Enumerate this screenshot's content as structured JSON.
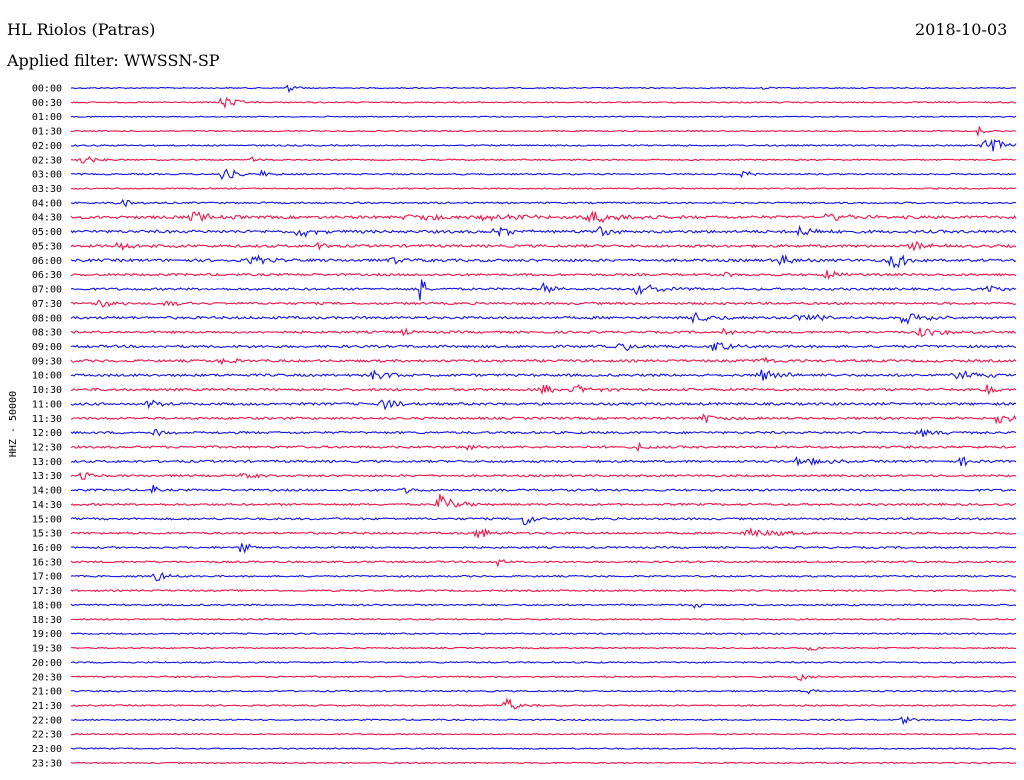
{
  "header": {
    "station": "HL Riolos (Patras)",
    "date": "2018-10-03",
    "filter": "Applied filter: WWSSN-SP"
  },
  "chart_data": {
    "type": "line",
    "title": "HL Riolos (Patras)",
    "subtitle": "Applied filter: WWSSN-SP",
    "date": "2018-10-03",
    "ylabel": "HHZ - 50000",
    "row_labels": [
      "00:00",
      "00:30",
      "01:00",
      "01:30",
      "02:00",
      "02:30",
      "03:00",
      "03:30",
      "04:00",
      "04:30",
      "05:00",
      "05:30",
      "06:00",
      "06:30",
      "07:00",
      "07:30",
      "08:00",
      "08:30",
      "09:00",
      "09:30",
      "10:00",
      "10:30",
      "11:00",
      "11:30",
      "12:00",
      "12:30",
      "13:00",
      "13:30",
      "14:00",
      "14:30",
      "15:00",
      "15:30",
      "16:00",
      "16:30",
      "17:00",
      "17:30",
      "18:00",
      "18:30",
      "19:00",
      "19:30",
      "20:00",
      "20:30",
      "21:00",
      "21:30",
      "22:00",
      "22:30",
      "23:00",
      "23:30"
    ],
    "trace_minutes": 30,
    "colors": {
      "even": "#1414e6",
      "odd": "#f0144a"
    },
    "series": [
      {
        "label": "00:00",
        "noise": 0.6,
        "events": [
          {
            "x": 0.23,
            "amp": 4,
            "w": 0.012
          },
          {
            "x": 0.73,
            "amp": 3,
            "w": 0.008
          }
        ]
      },
      {
        "label": "00:30",
        "noise": 0.6,
        "events": [
          {
            "x": 0.16,
            "amp": 9,
            "w": 0.015
          }
        ]
      },
      {
        "label": "01:00",
        "noise": 0.5,
        "events": []
      },
      {
        "label": "01:30",
        "noise": 0.6,
        "events": [
          {
            "x": 0.96,
            "amp": 6,
            "w": 0.01
          }
        ]
      },
      {
        "label": "02:00",
        "noise": 0.7,
        "events": [
          {
            "x": 0.97,
            "amp": 9,
            "w": 0.03
          }
        ]
      },
      {
        "label": "02:30",
        "noise": 0.7,
        "events": [
          {
            "x": 0.01,
            "amp": 6,
            "w": 0.015
          },
          {
            "x": 0.19,
            "amp": 3,
            "w": 0.01
          }
        ]
      },
      {
        "label": "03:00",
        "noise": 0.7,
        "events": [
          {
            "x": 0.16,
            "amp": 9,
            "w": 0.015
          },
          {
            "x": 0.2,
            "amp": 4,
            "w": 0.012
          },
          {
            "x": 0.71,
            "amp": 5,
            "w": 0.012
          }
        ]
      },
      {
        "label": "03:30",
        "noise": 0.6,
        "events": []
      },
      {
        "label": "04:00",
        "noise": 0.8,
        "events": [
          {
            "x": 0.05,
            "amp": 6,
            "w": 0.015
          }
        ]
      },
      {
        "label": "04:30",
        "noise": 1.4,
        "events": [
          {
            "x": 0.13,
            "amp": 5,
            "w": 0.03
          },
          {
            "x": 0.36,
            "amp": 4,
            "w": 0.04
          },
          {
            "x": 0.44,
            "amp": 5,
            "w": 0.04
          },
          {
            "x": 0.55,
            "amp": 6,
            "w": 0.04
          },
          {
            "x": 0.8,
            "amp": 4,
            "w": 0.04
          }
        ]
      },
      {
        "label": "05:00",
        "noise": 1.4,
        "events": [
          {
            "x": 0.24,
            "amp": 6,
            "w": 0.02
          },
          {
            "x": 0.45,
            "amp": 5,
            "w": 0.02
          },
          {
            "x": 0.56,
            "amp": 5,
            "w": 0.02
          },
          {
            "x": 0.77,
            "amp": 6,
            "w": 0.02
          }
        ]
      },
      {
        "label": "05:30",
        "noise": 1.3,
        "events": [
          {
            "x": 0.05,
            "amp": 4,
            "w": 0.03
          },
          {
            "x": 0.26,
            "amp": 5,
            "w": 0.01
          },
          {
            "x": 0.89,
            "amp": 5,
            "w": 0.02
          }
        ]
      },
      {
        "label": "06:00",
        "noise": 1.3,
        "events": [
          {
            "x": 0.19,
            "amp": 6,
            "w": 0.02
          },
          {
            "x": 0.34,
            "amp": 4,
            "w": 0.02
          },
          {
            "x": 0.75,
            "amp": 6,
            "w": 0.015
          },
          {
            "x": 0.87,
            "amp": 8,
            "w": 0.03
          }
        ]
      },
      {
        "label": "06:30",
        "noise": 1.1,
        "events": [
          {
            "x": 0.69,
            "amp": 4,
            "w": 0.01
          },
          {
            "x": 0.8,
            "amp": 5,
            "w": 0.02
          }
        ]
      },
      {
        "label": "07:00",
        "noise": 1.1,
        "events": [
          {
            "x": 0.37,
            "amp": 30,
            "w": 0.004
          },
          {
            "x": 0.5,
            "amp": 5,
            "w": 0.02
          },
          {
            "x": 0.6,
            "amp": 6,
            "w": 0.03
          },
          {
            "x": 0.97,
            "amp": 5,
            "w": 0.02
          }
        ]
      },
      {
        "label": "07:30",
        "noise": 1.1,
        "events": [
          {
            "x": 0.03,
            "amp": 5,
            "w": 0.02
          },
          {
            "x": 0.1,
            "amp": 3,
            "w": 0.02
          }
        ]
      },
      {
        "label": "08:00",
        "noise": 1.2,
        "events": [
          {
            "x": 0.66,
            "amp": 6,
            "w": 0.025
          },
          {
            "x": 0.77,
            "amp": 6,
            "w": 0.025
          },
          {
            "x": 0.88,
            "amp": 6,
            "w": 0.03
          }
        ]
      },
      {
        "label": "08:30",
        "noise": 1.1,
        "events": [
          {
            "x": 0.35,
            "amp": 4,
            "w": 0.01
          },
          {
            "x": 0.69,
            "amp": 4,
            "w": 0.02
          },
          {
            "x": 0.9,
            "amp": 5,
            "w": 0.03
          }
        ]
      },
      {
        "label": "09:00",
        "noise": 1.2,
        "events": [
          {
            "x": 0.58,
            "amp": 5,
            "w": 0.02
          },
          {
            "x": 0.68,
            "amp": 6,
            "w": 0.02
          }
        ]
      },
      {
        "label": "09:30",
        "noise": 1.2,
        "events": [
          {
            "x": 0.16,
            "amp": 4,
            "w": 0.02
          },
          {
            "x": 0.73,
            "amp": 4,
            "w": 0.02
          }
        ]
      },
      {
        "label": "10:00",
        "noise": 1.2,
        "events": [
          {
            "x": 0.32,
            "amp": 7,
            "w": 0.02
          },
          {
            "x": 0.73,
            "amp": 6,
            "w": 0.03
          },
          {
            "x": 0.94,
            "amp": 6,
            "w": 0.03
          }
        ]
      },
      {
        "label": "10:30",
        "noise": 1.2,
        "events": [
          {
            "x": 0.5,
            "amp": 5,
            "w": 0.02
          },
          {
            "x": 0.53,
            "amp": 6,
            "w": 0.02
          },
          {
            "x": 0.97,
            "amp": 5,
            "w": 0.015
          }
        ]
      },
      {
        "label": "11:00",
        "noise": 1.2,
        "events": [
          {
            "x": 0.08,
            "amp": 6,
            "w": 0.015
          },
          {
            "x": 0.33,
            "amp": 6,
            "w": 0.02
          }
        ]
      },
      {
        "label": "11:30",
        "noise": 1.1,
        "events": [
          {
            "x": 0.67,
            "amp": 5,
            "w": 0.02
          },
          {
            "x": 0.98,
            "amp": 8,
            "w": 0.015
          }
        ]
      },
      {
        "label": "12:00",
        "noise": 1.1,
        "events": [
          {
            "x": 0.09,
            "amp": 5,
            "w": 0.015
          },
          {
            "x": 0.9,
            "amp": 4,
            "w": 0.03
          }
        ]
      },
      {
        "label": "12:30",
        "noise": 1.1,
        "events": [
          {
            "x": 0.42,
            "amp": 7,
            "w": 0.012
          },
          {
            "x": 0.6,
            "amp": 5,
            "w": 0.012
          }
        ]
      },
      {
        "label": "13:00",
        "noise": 1.1,
        "events": [
          {
            "x": 0.77,
            "amp": 5,
            "w": 0.03
          },
          {
            "x": 0.94,
            "amp": 8,
            "w": 0.01
          }
        ]
      },
      {
        "label": "13:30",
        "noise": 1.0,
        "events": [
          {
            "x": 0.01,
            "amp": 5,
            "w": 0.015
          },
          {
            "x": 0.18,
            "amp": 3,
            "w": 0.02
          }
        ]
      },
      {
        "label": "14:00",
        "noise": 1.0,
        "events": [
          {
            "x": 0.085,
            "amp": 14,
            "w": 0.004
          },
          {
            "x": 0.35,
            "amp": 4,
            "w": 0.02
          }
        ]
      },
      {
        "label": "14:30",
        "noise": 1.0,
        "events": [
          {
            "x": 0.39,
            "amp": 11,
            "w": 0.02
          }
        ]
      },
      {
        "label": "15:00",
        "noise": 1.0,
        "events": [
          {
            "x": 0.48,
            "amp": 10,
            "w": 0.01
          }
        ]
      },
      {
        "label": "15:30",
        "noise": 1.0,
        "events": [
          {
            "x": 0.43,
            "amp": 7,
            "w": 0.015
          },
          {
            "x": 0.72,
            "amp": 5,
            "w": 0.04
          }
        ]
      },
      {
        "label": "16:00",
        "noise": 0.9,
        "events": [
          {
            "x": 0.18,
            "amp": 8,
            "w": 0.01
          }
        ]
      },
      {
        "label": "16:30",
        "noise": 0.9,
        "events": [
          {
            "x": 0.45,
            "amp": 6,
            "w": 0.01
          }
        ]
      },
      {
        "label": "17:00",
        "noise": 0.8,
        "events": [
          {
            "x": 0.09,
            "amp": 6,
            "w": 0.015
          }
        ]
      },
      {
        "label": "17:30",
        "noise": 0.8,
        "events": []
      },
      {
        "label": "18:00",
        "noise": 0.8,
        "events": [
          {
            "x": 0.66,
            "amp": 3,
            "w": 0.01
          }
        ]
      },
      {
        "label": "18:30",
        "noise": 0.7,
        "events": []
      },
      {
        "label": "19:00",
        "noise": 0.7,
        "events": []
      },
      {
        "label": "19:30",
        "noise": 0.7,
        "events": [
          {
            "x": 0.78,
            "amp": 4,
            "w": 0.015
          }
        ]
      },
      {
        "label": "20:00",
        "noise": 0.7,
        "events": []
      },
      {
        "label": "20:30",
        "noise": 0.7,
        "events": [
          {
            "x": 0.77,
            "amp": 5,
            "w": 0.01
          }
        ]
      },
      {
        "label": "21:00",
        "noise": 0.7,
        "events": [
          {
            "x": 0.78,
            "amp": 5,
            "w": 0.008
          }
        ]
      },
      {
        "label": "21:30",
        "noise": 0.7,
        "events": [
          {
            "x": 0.46,
            "amp": 8,
            "w": 0.015
          }
        ]
      },
      {
        "label": "22:00",
        "noise": 0.7,
        "events": [
          {
            "x": 0.88,
            "amp": 4,
            "w": 0.012
          }
        ]
      },
      {
        "label": "22:30",
        "noise": 0.6,
        "events": []
      },
      {
        "label": "23:00",
        "noise": 0.6,
        "events": []
      },
      {
        "label": "23:30",
        "noise": 0.6,
        "events": []
      }
    ]
  }
}
